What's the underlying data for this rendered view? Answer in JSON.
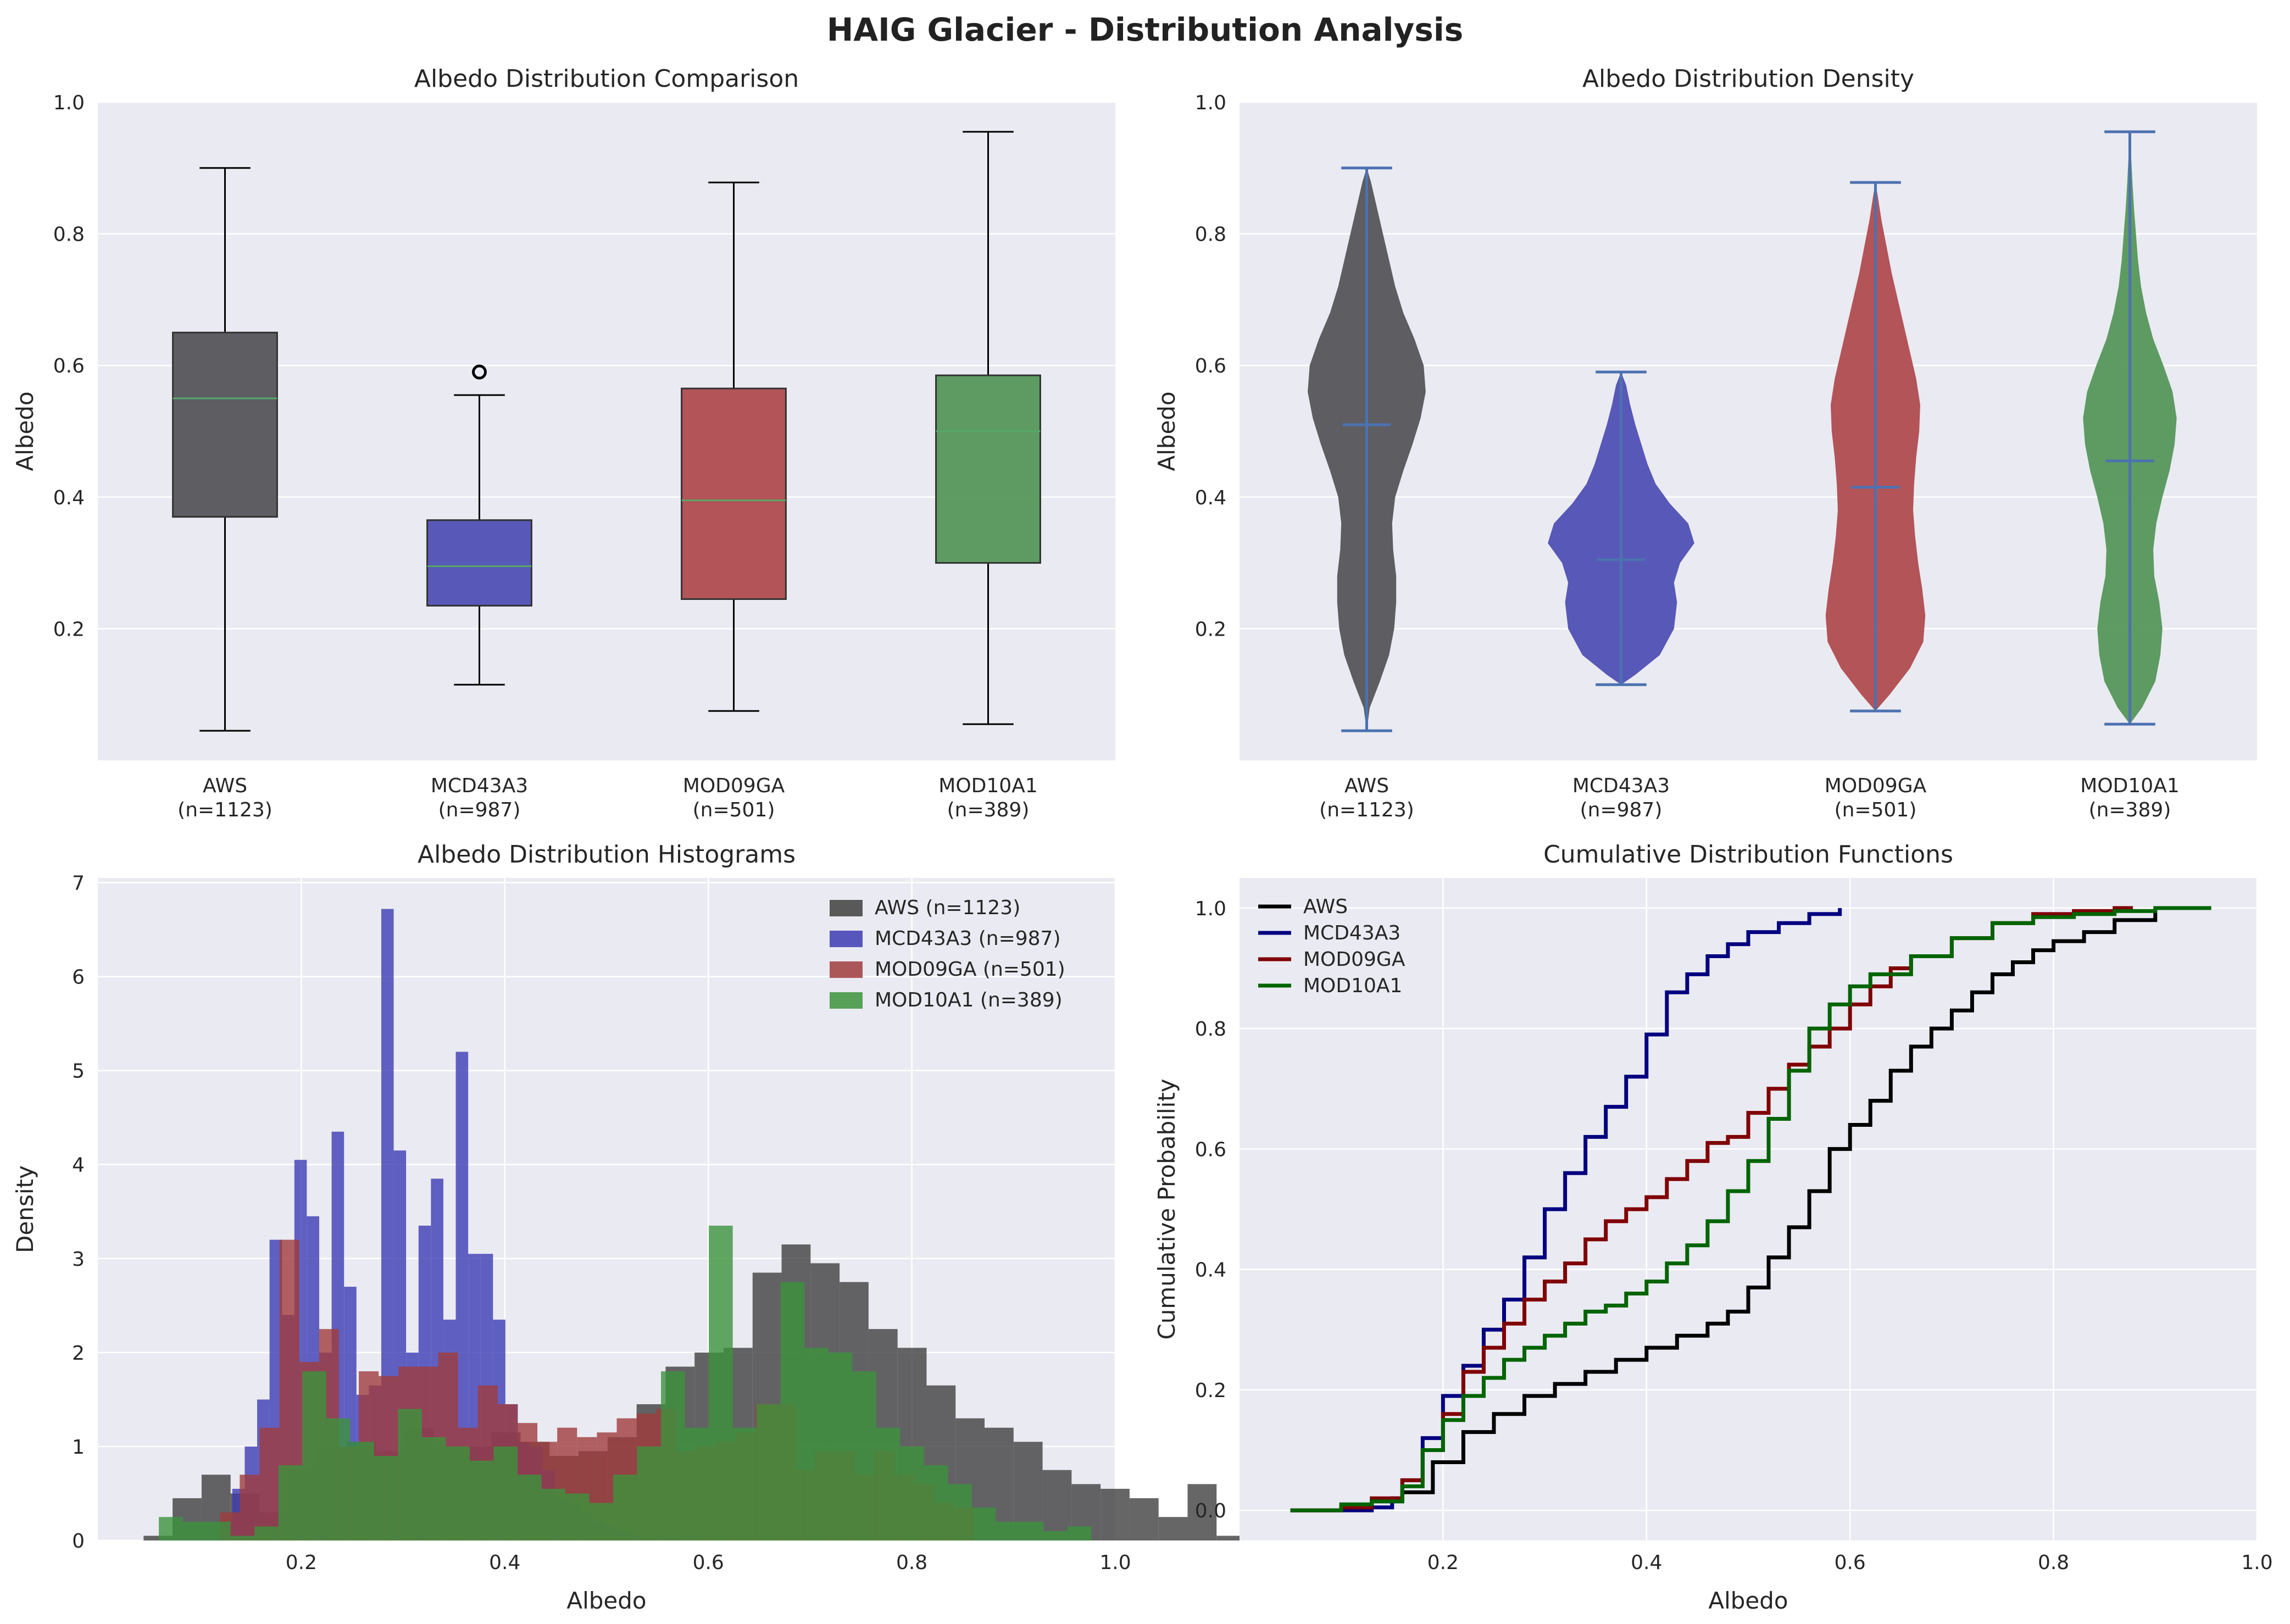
{
  "figure": {
    "title": "HAIG Glacier - Distribution Analysis"
  },
  "theme": {
    "axes_bg": "#eaeaf2",
    "grid": "#ffffff",
    "text": "#262626",
    "box_colors": [
      "#55555a",
      "#5050b4",
      "#b04c4f",
      "#55975a"
    ],
    "line_colors": [
      "#000000",
      "#000080",
      "#800000",
      "#006400"
    ],
    "hist_colors": [
      "#404040",
      "#3c3cb4",
      "#a03c3c",
      "#3c943c"
    ],
    "violin_stat_line": "#4c72b0"
  },
  "chart_data": [
    {
      "type": "box",
      "title": "Albedo Distribution Comparison",
      "xlabel": "",
      "ylabel": "Albedo",
      "ylim": [
        0.0,
        1.0
      ],
      "yticks": [
        "0.2",
        "0.4",
        "0.6",
        "0.8",
        "1.0"
      ],
      "categories": [
        "AWS\n(n=1123)",
        "MCD43A3\n(n=987)",
        "MOD09GA\n(n=501)",
        "MOD10A1\n(n=389)"
      ],
      "boxes": [
        {
          "name": "AWS",
          "n": 1123,
          "whislo": 0.045,
          "q1": 0.37,
          "median": 0.55,
          "q3": 0.65,
          "whishi": 0.9,
          "fliers": []
        },
        {
          "name": "MCD43A3",
          "n": 987,
          "whislo": 0.115,
          "q1": 0.235,
          "median": 0.295,
          "q3": 0.365,
          "whishi": 0.555,
          "fliers": [
            0.59
          ]
        },
        {
          "name": "MOD09GA",
          "n": 501,
          "whislo": 0.075,
          "q1": 0.245,
          "median": 0.395,
          "q3": 0.565,
          "whishi": 0.878,
          "fliers": []
        },
        {
          "name": "MOD10A1",
          "n": 389,
          "whislo": 0.055,
          "q1": 0.3,
          "median": 0.5,
          "q3": 0.585,
          "whishi": 0.955,
          "fliers": []
        }
      ]
    },
    {
      "type": "violin",
      "title": "Albedo Distribution Density",
      "xlabel": "",
      "ylabel": "Albedo",
      "ylim": [
        0.0,
        1.0
      ],
      "yticks": [
        "0.2",
        "0.4",
        "0.6",
        "0.8",
        "1.0"
      ],
      "categories": [
        "AWS\n(n=1123)",
        "MCD43A3\n(n=987)",
        "MOD09GA\n(n=501)",
        "MOD10A1\n(n=389)"
      ],
      "violins": [
        {
          "name": "AWS",
          "min": 0.045,
          "mean": 0.51,
          "max": 0.9,
          "profile": [
            [
              0.045,
              0.0
            ],
            [
              0.08,
              0.03
            ],
            [
              0.12,
              0.13
            ],
            [
              0.16,
              0.22
            ],
            [
              0.2,
              0.27
            ],
            [
              0.24,
              0.29
            ],
            [
              0.28,
              0.29
            ],
            [
              0.32,
              0.26
            ],
            [
              0.36,
              0.25
            ],
            [
              0.4,
              0.28
            ],
            [
              0.44,
              0.36
            ],
            [
              0.48,
              0.45
            ],
            [
              0.52,
              0.53
            ],
            [
              0.56,
              0.58
            ],
            [
              0.6,
              0.56
            ],
            [
              0.64,
              0.47
            ],
            [
              0.68,
              0.36
            ],
            [
              0.72,
              0.28
            ],
            [
              0.76,
              0.22
            ],
            [
              0.8,
              0.16
            ],
            [
              0.84,
              0.1
            ],
            [
              0.88,
              0.04
            ],
            [
              0.9,
              0.0
            ]
          ]
        },
        {
          "name": "MCD43A3",
          "min": 0.115,
          "mean": 0.305,
          "max": 0.59,
          "profile": [
            [
              0.115,
              0.0
            ],
            [
              0.13,
              0.14
            ],
            [
              0.16,
              0.38
            ],
            [
              0.2,
              0.52
            ],
            [
              0.24,
              0.55
            ],
            [
              0.27,
              0.52
            ],
            [
              0.3,
              0.58
            ],
            [
              0.33,
              0.72
            ],
            [
              0.36,
              0.66
            ],
            [
              0.39,
              0.48
            ],
            [
              0.42,
              0.34
            ],
            [
              0.45,
              0.26
            ],
            [
              0.48,
              0.2
            ],
            [
              0.51,
              0.14
            ],
            [
              0.54,
              0.09
            ],
            [
              0.57,
              0.05
            ],
            [
              0.59,
              0.0
            ]
          ]
        },
        {
          "name": "MOD09GA",
          "min": 0.075,
          "mean": 0.415,
          "max": 0.878,
          "profile": [
            [
              0.075,
              0.0
            ],
            [
              0.1,
              0.14
            ],
            [
              0.14,
              0.34
            ],
            [
              0.18,
              0.47
            ],
            [
              0.22,
              0.49
            ],
            [
              0.26,
              0.46
            ],
            [
              0.3,
              0.42
            ],
            [
              0.34,
              0.39
            ],
            [
              0.38,
              0.37
            ],
            [
              0.42,
              0.38
            ],
            [
              0.46,
              0.4
            ],
            [
              0.5,
              0.43
            ],
            [
              0.54,
              0.44
            ],
            [
              0.58,
              0.4
            ],
            [
              0.62,
              0.34
            ],
            [
              0.66,
              0.28
            ],
            [
              0.7,
              0.22
            ],
            [
              0.74,
              0.16
            ],
            [
              0.78,
              0.11
            ],
            [
              0.82,
              0.06
            ],
            [
              0.86,
              0.02
            ],
            [
              0.878,
              0.0
            ]
          ]
        },
        {
          "name": "MOD10A1",
          "min": 0.055,
          "mean": 0.455,
          "max": 0.955,
          "profile": [
            [
              0.055,
              0.0
            ],
            [
              0.08,
              0.12
            ],
            [
              0.12,
              0.25
            ],
            [
              0.16,
              0.3
            ],
            [
              0.2,
              0.32
            ],
            [
              0.24,
              0.29
            ],
            [
              0.28,
              0.24
            ],
            [
              0.32,
              0.23
            ],
            [
              0.36,
              0.26
            ],
            [
              0.4,
              0.32
            ],
            [
              0.44,
              0.39
            ],
            [
              0.48,
              0.44
            ],
            [
              0.52,
              0.46
            ],
            [
              0.56,
              0.42
            ],
            [
              0.6,
              0.33
            ],
            [
              0.64,
              0.23
            ],
            [
              0.68,
              0.16
            ],
            [
              0.72,
              0.11
            ],
            [
              0.76,
              0.08
            ],
            [
              0.8,
              0.06
            ],
            [
              0.84,
              0.04
            ],
            [
              0.88,
              0.025
            ],
            [
              0.92,
              0.012
            ],
            [
              0.955,
              0.0
            ]
          ]
        }
      ]
    },
    {
      "type": "histogram",
      "title": "Albedo Distribution Histograms",
      "xlabel": "Albedo",
      "ylabel": "Density",
      "xlim": [
        0.0,
        1.0
      ],
      "ylim": [
        0.0,
        7.05
      ],
      "xticks": [
        "0.2",
        "0.4",
        "0.6",
        "0.8",
        "1.0"
      ],
      "yticks": [
        "0",
        "1",
        "2",
        "3",
        "4",
        "5",
        "6",
        "7"
      ],
      "legend_position": "top-right",
      "series": [
        {
          "name": "AWS (n=1123)",
          "start": 0.045,
          "width": 0.0285,
          "values": [
            0.05,
            0.45,
            0.7,
            0.5,
            0.3,
            0.75,
            1.0,
            1.05,
            0.95,
            1.2,
            1.0,
            1.0,
            1.15,
            1.05,
            0.9,
            0.95,
            1.1,
            1.45,
            1.85,
            2.0,
            2.05,
            2.85,
            3.15,
            2.95,
            2.75,
            2.25,
            2.05,
            1.65,
            1.3,
            1.2,
            1.05,
            0.75,
            0.6,
            0.55,
            0.45,
            0.25,
            0.6,
            0.05
          ]
        },
        {
          "name": "MCD43A3 (n=987)",
          "start": 0.12,
          "width": 0.0122,
          "values": [
            0.2,
            0.55,
            1.0,
            1.5,
            3.2,
            2.4,
            4.05,
            3.45,
            2.0,
            4.35,
            2.7,
            1.55,
            1.65,
            6.72,
            4.15,
            2.0,
            3.35,
            3.85,
            2.35,
            5.2,
            3.05,
            3.05,
            2.35,
            1.45,
            1.05,
            1.0,
            0.75,
            0.45,
            0.4,
            0.3,
            0.2,
            0.15,
            0.1,
            0.05,
            0.05,
            0.05,
            0.05,
            0.05
          ]
        },
        {
          "name": "MOD09GA (n=501)",
          "start": 0.12,
          "width": 0.0195,
          "values": [
            0.3,
            0.7,
            1.2,
            3.2,
            1.9,
            2.25,
            1.0,
            1.8,
            1.75,
            1.85,
            1.85,
            2.0,
            1.2,
            1.65,
            1.45,
            1.25,
            1.05,
            1.2,
            1.1,
            1.15,
            1.3,
            1.35,
            1.4,
            0.95,
            1.0,
            1.05,
            1.15,
            1.45,
            1.45,
            0.75,
            0.95,
            0.95,
            0.7,
            0.95,
            0.7,
            0.6,
            0.4,
            0.35
          ]
        },
        {
          "name": "MOD10A1 (n=389)",
          "start": 0.06,
          "width": 0.0235,
          "values": [
            0.25,
            0.2,
            0.2,
            0.05,
            0.15,
            0.8,
            1.8,
            1.3,
            1.05,
            0.9,
            1.4,
            1.1,
            1.0,
            0.85,
            1.0,
            0.7,
            0.55,
            0.5,
            0.4,
            0.7,
            1.0,
            1.8,
            1.2,
            3.35,
            1.2,
            1.45,
            2.75,
            2.05,
            2.0,
            1.8,
            1.2,
            1.0,
            0.8,
            0.6,
            0.35,
            0.2,
            0.2,
            0.1,
            0.15
          ]
        }
      ]
    },
    {
      "type": "line",
      "title": "Cumulative Distribution Functions",
      "xlabel": "Albedo",
      "ylabel": "Cumulative Probability",
      "xlim": [
        0.0,
        1.0
      ],
      "ylim": [
        -0.05,
        1.05
      ],
      "xticks": [
        "0.2",
        "0.4",
        "0.6",
        "0.8",
        "1.0"
      ],
      "yticks": [
        "0.0",
        "0.2",
        "0.4",
        "0.6",
        "0.8",
        "1.0"
      ],
      "legend_position": "top-left",
      "series": [
        {
          "name": "AWS",
          "x": [
            0.05,
            0.1,
            0.13,
            0.16,
            0.19,
            0.22,
            0.25,
            0.28,
            0.31,
            0.34,
            0.37,
            0.4,
            0.43,
            0.46,
            0.48,
            0.5,
            0.52,
            0.54,
            0.56,
            0.58,
            0.6,
            0.62,
            0.64,
            0.66,
            0.68,
            0.7,
            0.72,
            0.74,
            0.76,
            0.78,
            0.8,
            0.83,
            0.86,
            0.9
          ],
          "y": [
            0.0,
            0.005,
            0.015,
            0.03,
            0.08,
            0.13,
            0.16,
            0.19,
            0.21,
            0.23,
            0.25,
            0.27,
            0.29,
            0.31,
            0.33,
            0.37,
            0.42,
            0.47,
            0.53,
            0.6,
            0.64,
            0.68,
            0.73,
            0.77,
            0.8,
            0.83,
            0.86,
            0.89,
            0.91,
            0.93,
            0.945,
            0.96,
            0.98,
            1.0
          ]
        },
        {
          "name": "MCD43A3",
          "x": [
            0.05,
            0.1,
            0.13,
            0.15,
            0.16,
            0.18,
            0.2,
            0.22,
            0.24,
            0.26,
            0.28,
            0.3,
            0.32,
            0.34,
            0.36,
            0.38,
            0.4,
            0.42,
            0.44,
            0.46,
            0.48,
            0.5,
            0.53,
            0.56,
            0.59
          ],
          "y": [
            0.0,
            0.0,
            0.005,
            0.02,
            0.05,
            0.12,
            0.19,
            0.24,
            0.3,
            0.35,
            0.42,
            0.5,
            0.56,
            0.62,
            0.67,
            0.72,
            0.79,
            0.86,
            0.89,
            0.92,
            0.94,
            0.96,
            0.975,
            0.99,
            1.0
          ]
        },
        {
          "name": "MOD09GA",
          "x": [
            0.05,
            0.1,
            0.13,
            0.16,
            0.18,
            0.2,
            0.22,
            0.24,
            0.26,
            0.28,
            0.3,
            0.32,
            0.34,
            0.36,
            0.38,
            0.4,
            0.42,
            0.44,
            0.46,
            0.48,
            0.5,
            0.52,
            0.54,
            0.56,
            0.58,
            0.6,
            0.62,
            0.64,
            0.66,
            0.7,
            0.74,
            0.78,
            0.82,
            0.86,
            0.878
          ],
          "y": [
            0.0,
            0.005,
            0.02,
            0.05,
            0.1,
            0.16,
            0.23,
            0.27,
            0.31,
            0.35,
            0.38,
            0.41,
            0.45,
            0.48,
            0.5,
            0.52,
            0.55,
            0.58,
            0.61,
            0.62,
            0.66,
            0.7,
            0.74,
            0.77,
            0.8,
            0.84,
            0.87,
            0.9,
            0.92,
            0.95,
            0.975,
            0.99,
            0.995,
            1.0,
            1.0
          ]
        },
        {
          "name": "MOD10A1",
          "x": [
            0.05,
            0.1,
            0.13,
            0.16,
            0.18,
            0.2,
            0.22,
            0.24,
            0.26,
            0.28,
            0.3,
            0.32,
            0.34,
            0.36,
            0.38,
            0.4,
            0.42,
            0.44,
            0.46,
            0.48,
            0.5,
            0.52,
            0.54,
            0.56,
            0.58,
            0.6,
            0.62,
            0.66,
            0.7,
            0.74,
            0.78,
            0.82,
            0.86,
            0.9,
            0.955
          ],
          "y": [
            0.0,
            0.01,
            0.015,
            0.04,
            0.1,
            0.15,
            0.19,
            0.22,
            0.25,
            0.27,
            0.29,
            0.31,
            0.33,
            0.34,
            0.36,
            0.38,
            0.41,
            0.44,
            0.48,
            0.53,
            0.58,
            0.65,
            0.73,
            0.8,
            0.84,
            0.87,
            0.89,
            0.92,
            0.95,
            0.975,
            0.985,
            0.99,
            0.995,
            1.0,
            1.0
          ]
        }
      ]
    }
  ]
}
